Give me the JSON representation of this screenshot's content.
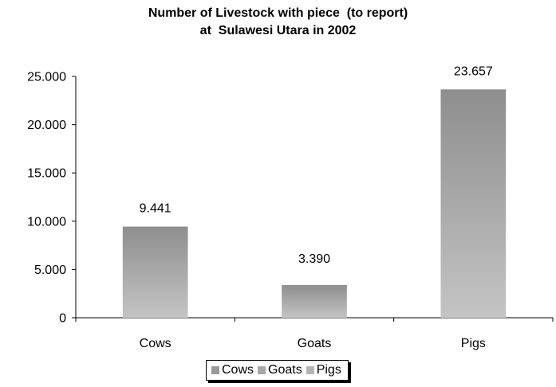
{
  "chart_data": {
    "type": "bar",
    "title": "Number of Livestock with piece  (to report)",
    "subtitle": "at  Sulawesi Utara in 2002",
    "categories": [
      "Cows",
      "Goats",
      "Pigs"
    ],
    "values": [
      9441,
      3390,
      23657
    ],
    "data_labels": [
      "9.441",
      "3.390",
      "23.657"
    ],
    "ylim": [
      0,
      25000
    ],
    "yticks": [
      0,
      5000,
      10000,
      15000,
      20000,
      25000
    ],
    "ytick_labels": [
      "0",
      "5.000",
      "10.000",
      "15.000",
      "20.000",
      "25.000"
    ],
    "xlabel": "",
    "ylabel": "",
    "grid": false,
    "legend_position": "bottom",
    "legend": [
      {
        "label": "Cows",
        "color": "#999999"
      },
      {
        "label": "Goats",
        "color": "#a6a6a6"
      },
      {
        "label": "Pigs",
        "color": "#b3b3b3"
      }
    ],
    "bar_gradient": {
      "top": "#8e8e8e",
      "bottom": "#c4c4c4"
    }
  }
}
